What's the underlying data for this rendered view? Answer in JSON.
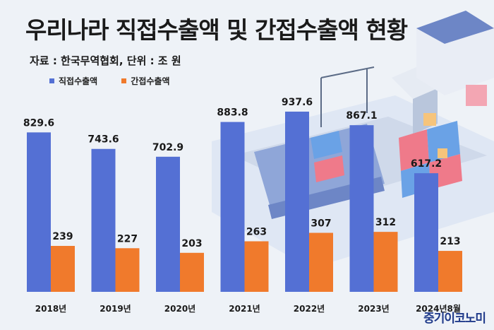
{
  "header": {
    "title": "우리나라 직접수출액 및 간접수출액 현황",
    "source": "자료 : 한국무역협회, 단위 : 조 원"
  },
  "brand": {
    "text": "중기이코노미"
  },
  "colors": {
    "direct": "#5470d4",
    "indirect": "#f07a2c",
    "background": "#eef2f7"
  },
  "chart_data": {
    "type": "bar",
    "title": "우리나라 직접수출액 및 간접수출액 현황",
    "categories": [
      "2018년",
      "2019년",
      "2020년",
      "2021년",
      "2022년",
      "2023년",
      "2024년8월"
    ],
    "series": [
      {
        "name": "직접수출액",
        "values": [
          829.6,
          743.6,
          702.9,
          883.8,
          937.6,
          867.1,
          617.2
        ]
      },
      {
        "name": "간접수출액",
        "values": [
          239,
          227,
          203,
          263,
          307,
          312,
          213
        ]
      }
    ],
    "value_labels": {
      "직접수출액": [
        "829.6",
        "743.6",
        "702.9",
        "883.8",
        "937.6",
        "867.1",
        "617.2"
      ],
      "간접수출액": [
        "239",
        "227",
        "203",
        "263",
        "307",
        "312",
        "213"
      ]
    },
    "legend_position": "top-left",
    "grid": false
  }
}
